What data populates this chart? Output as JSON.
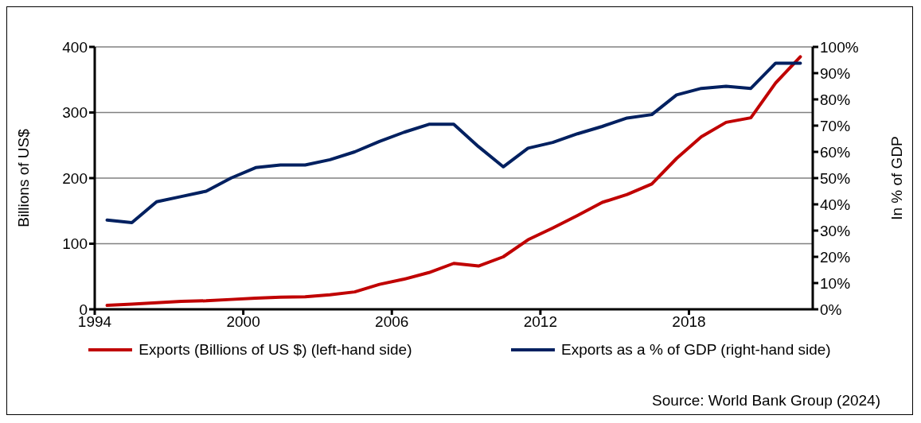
{
  "chart_data": {
    "type": "line",
    "x": [
      1994,
      1995,
      1996,
      1997,
      1998,
      1999,
      2000,
      2001,
      2002,
      2003,
      2004,
      2005,
      2006,
      2007,
      2008,
      2009,
      2010,
      2011,
      2012,
      2013,
      2014,
      2015,
      2016,
      2017,
      2018,
      2019,
      2020,
      2021,
      2022
    ],
    "series": [
      {
        "name": "Exports (Billions of US $) (left-hand side)",
        "color": "#c00000",
        "values": [
          6,
          8,
          10,
          12,
          13,
          15,
          17,
          18.5,
          19,
          22,
          26.5,
          38,
          46,
          56,
          70,
          66,
          80,
          106,
          124,
          143,
          163,
          175,
          191,
          230,
          263,
          285,
          292,
          345,
          385
        ]
      },
      {
        "name": "Exports as a % of GDP (right-hand side)",
        "color": "#002060",
        "axis": "y2",
        "values": [
          34,
          33,
          41,
          43,
          45,
          50,
          54,
          55,
          55,
          57,
          60,
          64,
          67.5,
          70.5,
          70.5,
          62,
          54.3,
          61.4,
          63.6,
          66.9,
          69.7,
          72.9,
          74.2,
          81.7,
          84.2,
          85,
          84.2,
          93.8,
          93.8
        ]
      }
    ],
    "xlim": [
      1993.5,
      2022.5
    ],
    "xticks": [
      {
        "value": 1993.5,
        "label": "1994"
      },
      {
        "value": 1999.5,
        "label": "2000"
      },
      {
        "value": 2005.5,
        "label": "2006"
      },
      {
        "value": 2011.5,
        "label": "2012"
      },
      {
        "value": 2017.5,
        "label": "2018"
      }
    ],
    "ylim": [
      0,
      400
    ],
    "yticks": [
      0,
      100,
      200,
      300,
      400
    ],
    "y2lim": [
      0,
      100
    ],
    "y2ticks": [
      {
        "value": 0,
        "label": "0%"
      },
      {
        "value": 10,
        "label": "10%"
      },
      {
        "value": 20,
        "label": "20%"
      },
      {
        "value": 30,
        "label": "30%"
      },
      {
        "value": 40,
        "label": "40%"
      },
      {
        "value": 50,
        "label": "50%"
      },
      {
        "value": 60,
        "label": "60%"
      },
      {
        "value": 70,
        "label": "70%"
      },
      {
        "value": 80,
        "label": "80%"
      },
      {
        "value": 90,
        "label": "90%"
      },
      {
        "value": 100,
        "label": "100%"
      }
    ],
    "ylabel": "Billions of US$",
    "y2label": "In % of GDP",
    "grid": "y",
    "legend": "bottom",
    "marker": "none",
    "line_style": "solid",
    "annotations": [
      "Source: World Bank Group (2024)"
    ]
  }
}
